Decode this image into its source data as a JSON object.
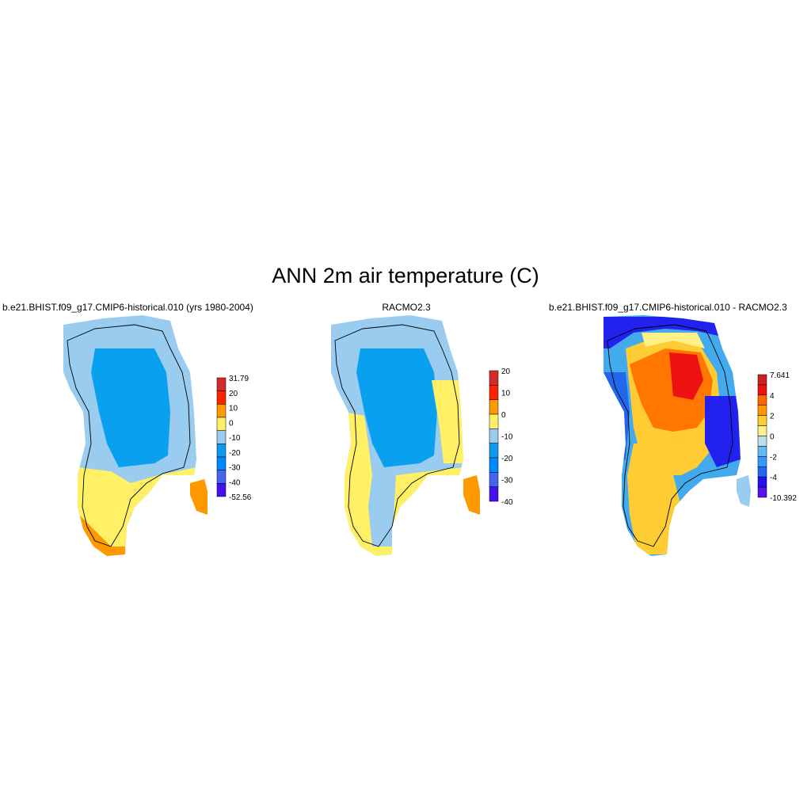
{
  "title": "ANN 2m air temperature (C)",
  "panels": [
    {
      "title": "b.e21.BHIST.f09_g17.CMIP6-historical.010 (yrs 1980-2004)",
      "colorbar": {
        "colors": [
          "#d32a2a",
          "#ff2200",
          "#ff9900",
          "#fff066",
          "#99ccee",
          "#1199ee",
          "#0088ff",
          "#4466ee",
          "#4411ee"
        ],
        "labels": [
          "31.79",
          "20",
          "10",
          "0",
          "-10",
          "-20",
          "-30",
          "-40",
          "-52.56"
        ]
      }
    },
    {
      "title": "RACMO2.3",
      "colorbar": {
        "colors": [
          "#d32a2a",
          "#ff2200",
          "#ff9900",
          "#fff066",
          "#99ccee",
          "#1199ee",
          "#0088ff",
          "#4466ee",
          "#4411ee"
        ],
        "labels": [
          "20",
          "10",
          "0",
          "-10",
          "-20",
          "-30",
          "-40"
        ]
      }
    },
    {
      "title": "b.e21.BHIST.f09_g17.CMIP6-historical.010 - RACMO2.3",
      "colorbar": {
        "colors": [
          "#cc2222",
          "#ee1111",
          "#ff6600",
          "#ff9900",
          "#ffcc33",
          "#fff088",
          "#bbddee",
          "#66bbee",
          "#3399ff",
          "#2266ee",
          "#2211ee",
          "#5511ee"
        ],
        "labels": [
          "7.641",
          "4",
          "2",
          "0",
          "-2",
          "-4",
          "-10.392"
        ]
      }
    }
  ],
  "colors": {
    "cold": "#0aa0f0",
    "cool": "#99ccee",
    "mild": "#fff066",
    "warm": "#ff9900",
    "diff_hot": "#ee1111",
    "diff_warm": "#ff7700",
    "diff_mid": "#ffcc33",
    "diff_neutral": "#fff088",
    "diff_cold": "#2222ee",
    "diff_cool": "#44aaee"
  }
}
